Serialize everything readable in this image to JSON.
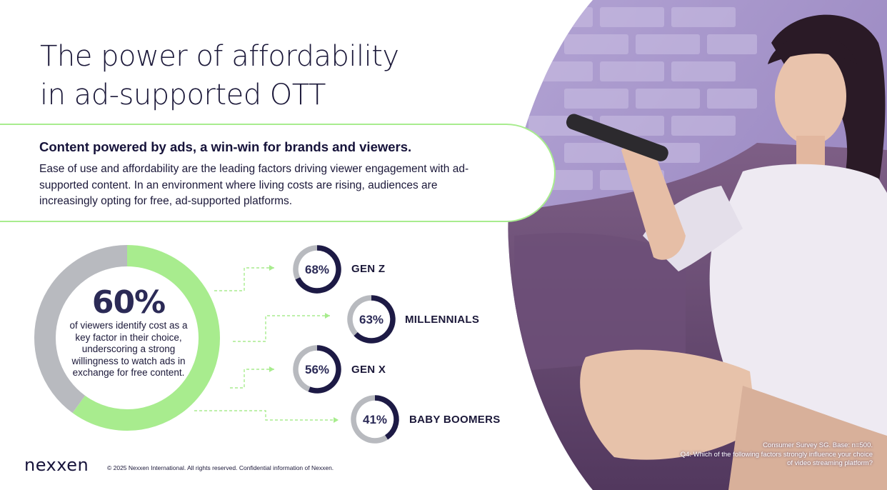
{
  "title": [
    "The power of affordability",
    "in ad-supported OTT"
  ],
  "callout": {
    "heading": "Content powered by ads, a win-win for brands and viewers.",
    "body": "Ease of use and affordability are the leading factors driving viewer engagement with ad-supported content. In an environment where living costs are rising, audiences are increasingly opting for free, ad-supported platforms."
  },
  "colors": {
    "green": "#a8ec8e",
    "gray": "#b8babf",
    "navy": "#1d1a45",
    "text": "#1b1839"
  },
  "chart_data": {
    "type": "pie",
    "main": {
      "value": 60,
      "label": "60%",
      "description": "of viewers identify cost as a key factor in their choice, underscoring a strong willingness to watch ads in exchange for free content."
    },
    "categories": [
      "GEN Z",
      "MILLENNIALS",
      "GEN X",
      "BABY BOOMERS"
    ],
    "values": [
      68,
      63,
      56,
      41
    ],
    "labels": [
      "68%",
      "63%",
      "56%",
      "41%"
    ]
  },
  "footer": {
    "logo": "nexxen",
    "copyright": "© 2025 Nexxen International. All rights reserved. Confidential information of Nexxen."
  },
  "source": [
    "Consumer Survey SG. Base: n=500.",
    "Q4: Which of the following factors strongly influence your choice",
    "of video streaming platform?"
  ]
}
